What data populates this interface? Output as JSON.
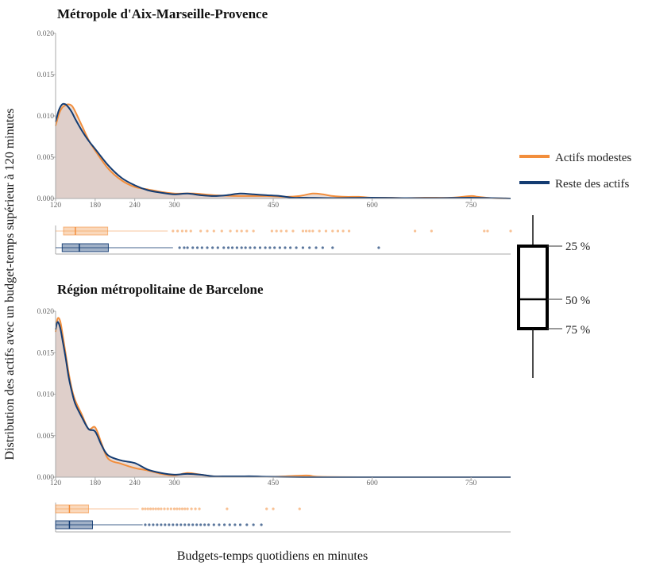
{
  "colors": {
    "modest": "#f28e3c",
    "rest": "#143c72",
    "fill_overlap": "#d8c6c0",
    "axis": "#aaaaaa",
    "tick_text": "#666666"
  },
  "legend": {
    "items": [
      {
        "label": "Actifs modestes",
        "color": "#f28e3c"
      },
      {
        "label": "Reste des actifs",
        "color": "#143c72"
      }
    ]
  },
  "boxplot_key": {
    "q1_label": "25 %",
    "median_label": "50 %",
    "q3_label": "75 %"
  },
  "axis_titles": {
    "y": "Distribution des actifs avec un budget-temps supérieur à 120 minutes",
    "x": "Budgets-temps quotidiens en minutes"
  },
  "chart_data": [
    {
      "type": "area",
      "title": "Métropole d'Aix-Marseille-Provence",
      "xlabel": "Budgets-temps quotidiens en minutes",
      "ylabel": "Distribution des actifs avec un budget-temps supérieur à 120 minutes",
      "xlim": [
        120,
        810
      ],
      "ylim": [
        0,
        0.02
      ],
      "x_ticks": [
        120,
        180,
        240,
        300,
        450,
        600,
        750
      ],
      "y_ticks": [
        0.0,
        0.005,
        0.01,
        0.015,
        0.02
      ],
      "y_tick_labels": [
        "0.000",
        "0.005",
        "0.010",
        "0.015",
        "0.020"
      ],
      "series": [
        {
          "name": "Actifs modestes",
          "x": [
            120,
            125,
            130,
            135,
            140,
            145,
            150,
            160,
            170,
            180,
            200,
            220,
            240,
            260,
            280,
            300,
            330,
            360,
            400,
            440,
            470,
            490,
            510,
            525,
            540,
            560,
            580,
            600,
            620,
            650,
            680,
            720,
            750,
            760,
            780,
            810
          ],
          "values": [
            0.0088,
            0.0102,
            0.011,
            0.0113,
            0.0114,
            0.0112,
            0.0105,
            0.0088,
            0.0071,
            0.0058,
            0.0036,
            0.0022,
            0.0014,
            0.0011,
            0.0008,
            0.0006,
            0.0006,
            0.0004,
            0.0003,
            0.0003,
            0.0002,
            0.0003,
            0.0006,
            0.0005,
            0.0003,
            0.0002,
            0.0002,
            0.0001,
            0.0001,
            5e-05,
            0.0001,
            0.0001,
            0.0003,
            0.0002,
            5e-05,
            0.0
          ]
        },
        {
          "name": "Reste des actifs",
          "x": [
            120,
            125,
            130,
            135,
            140,
            145,
            150,
            160,
            170,
            180,
            200,
            220,
            240,
            260,
            280,
            300,
            320,
            340,
            360,
            380,
            400,
            420,
            440,
            460,
            480,
            500,
            540,
            600,
            650,
            700,
            750,
            810
          ],
          "values": [
            0.0093,
            0.0107,
            0.0114,
            0.0114,
            0.011,
            0.0104,
            0.0096,
            0.0082,
            0.007,
            0.006,
            0.004,
            0.0025,
            0.0016,
            0.001,
            0.0007,
            0.0005,
            0.0006,
            0.0004,
            0.0003,
            0.0004,
            0.0006,
            0.0005,
            0.0004,
            0.0003,
            0.0001,
            0.0001,
            5e-05,
            0.0001,
            5e-05,
            5e-05,
            0.0001,
            0.0
          ]
        }
      ],
      "boxplots": [
        {
          "name": "Actifs modestes",
          "q1": 132,
          "median": 150,
          "q3": 199,
          "whisker_low": 120,
          "whisker_high": 290,
          "outliers": [
            298,
            305,
            312,
            318,
            325,
            340,
            350,
            360,
            372,
            385,
            395,
            402,
            410,
            420,
            448,
            455,
            462,
            470,
            480,
            495,
            500,
            505,
            510,
            520,
            530,
            540,
            548,
            556,
            565,
            665,
            690,
            770,
            775,
            810
          ]
        },
        {
          "name": "Reste des actifs",
          "q1": 130,
          "median": 156,
          "q3": 200,
          "whisker_low": 120,
          "whisker_high": 298,
          "outliers": [
            308,
            315,
            320,
            328,
            335,
            342,
            350,
            358,
            366,
            375,
            382,
            388,
            395,
            402,
            408,
            415,
            422,
            430,
            438,
            445,
            452,
            460,
            468,
            476,
            485,
            495,
            505,
            515,
            525,
            540,
            610
          ]
        }
      ]
    },
    {
      "type": "area",
      "title": "Région métropolitaine de Barcelone",
      "xlabel": "Budgets-temps quotidiens en minutes",
      "ylabel": "Distribution des actifs avec un budget-temps supérieur à 120 minutes",
      "xlim": [
        120,
        810
      ],
      "ylim": [
        0,
        0.02
      ],
      "x_ticks": [
        120,
        180,
        240,
        300,
        450,
        600,
        750
      ],
      "y_ticks": [
        0.0,
        0.005,
        0.01,
        0.015,
        0.02
      ],
      "y_tick_labels": [
        "0.000",
        "0.005",
        "0.010",
        "0.015",
        "0.020"
      ],
      "series": [
        {
          "name": "Actifs modestes",
          "x": [
            120,
            123,
            127,
            131,
            135,
            140,
            145,
            150,
            160,
            170,
            180,
            190,
            200,
            220,
            240,
            260,
            280,
            300,
            320,
            340,
            360,
            400,
            450,
            500,
            520,
            600,
            700,
            810
          ],
          "values": [
            0.0175,
            0.0191,
            0.0188,
            0.017,
            0.015,
            0.0125,
            0.0105,
            0.0092,
            0.0075,
            0.0058,
            0.006,
            0.004,
            0.0022,
            0.0016,
            0.0011,
            0.0008,
            0.0004,
            0.0002,
            0.0005,
            0.0003,
            0.0001,
            0.0001,
            5e-05,
            0.0002,
            5e-05,
            0.0,
            0.0,
            0.0
          ]
        },
        {
          "name": "Reste des actifs",
          "x": [
            120,
            123,
            127,
            131,
            135,
            140,
            145,
            150,
            160,
            170,
            180,
            190,
            200,
            220,
            240,
            260,
            280,
            300,
            320,
            340,
            360,
            380,
            400,
            420,
            440,
            500,
            600,
            810
          ],
          "values": [
            0.0178,
            0.0187,
            0.018,
            0.0163,
            0.0145,
            0.012,
            0.0102,
            0.0088,
            0.0072,
            0.0058,
            0.0055,
            0.0038,
            0.0026,
            0.002,
            0.0017,
            0.0009,
            0.0005,
            0.0003,
            0.0004,
            0.0003,
            0.0001,
            0.0001,
            0.0001,
            0.0001,
            5e-05,
            0.0,
            0.0,
            0.0
          ]
        }
      ],
      "boxplots": [
        {
          "name": "Actifs modestes",
          "q1": 120,
          "median": 141,
          "q3": 170,
          "whisker_low": 120,
          "whisker_high": 246,
          "outliers": [
            252,
            256,
            260,
            264,
            268,
            272,
            276,
            280,
            285,
            290,
            295,
            300,
            304,
            308,
            312,
            316,
            320,
            326,
            332,
            338,
            380,
            440,
            450,
            490
          ]
        },
        {
          "name": "Reste des actifs",
          "q1": 120,
          "median": 141,
          "q3": 176,
          "whisker_low": 120,
          "whisker_high": 252,
          "outliers": [
            256,
            262,
            268,
            274,
            280,
            286,
            292,
            298,
            304,
            310,
            316,
            322,
            328,
            334,
            340,
            346,
            352,
            360,
            368,
            376,
            384,
            392,
            400,
            410,
            420,
            432
          ]
        }
      ]
    }
  ]
}
